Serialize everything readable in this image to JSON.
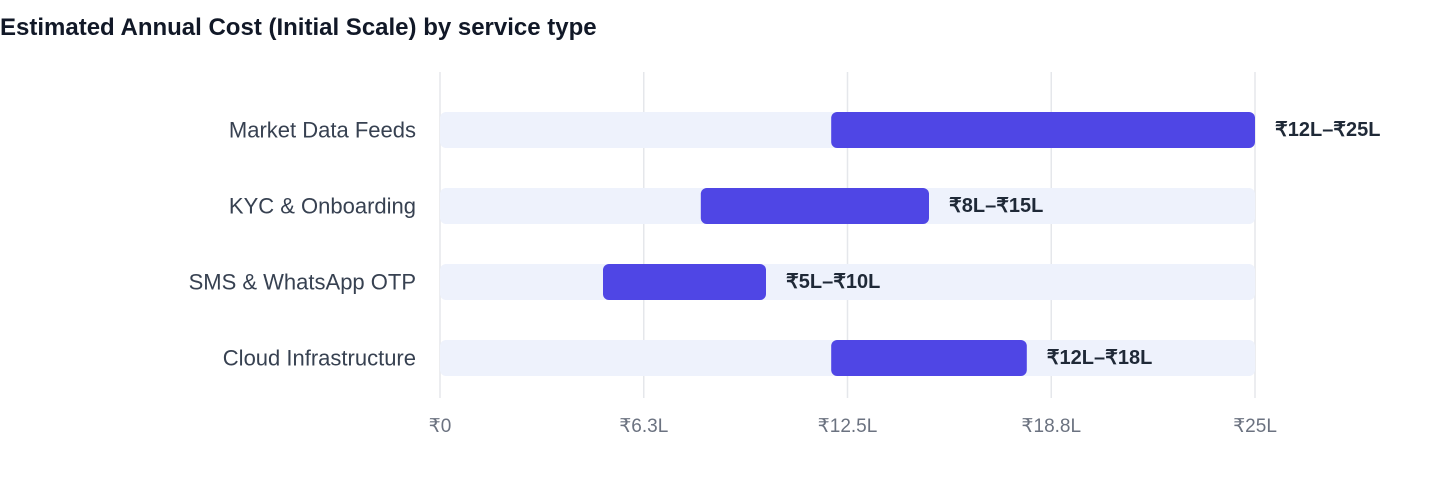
{
  "chart_data": {
    "type": "bar",
    "subtype": "floating-range-horizontal",
    "title": "Estimated Annual Cost (Initial Scale) by service type",
    "xlabel": "",
    "ylabel": "",
    "unit": "lakh INR",
    "xlim": [
      0,
      25
    ],
    "x_ticks": [
      0,
      6.25,
      12.5,
      18.75,
      25
    ],
    "x_tick_labels": [
      "₹0",
      "₹6.3L",
      "₹12.5L",
      "₹18.8L",
      "₹25L"
    ],
    "grid": true,
    "legend": "none",
    "categories": [
      "Market Data Feeds",
      "KYC & Onboarding",
      "SMS & WhatsApp OTP",
      "Cloud Infrastructure"
    ],
    "ranges": [
      {
        "low": 12,
        "high": 25,
        "label": "₹12L–₹25L"
      },
      {
        "low": 8,
        "high": 15,
        "label": "₹8L–₹15L"
      },
      {
        "low": 5,
        "high": 10,
        "label": "₹5L–₹10L"
      },
      {
        "low": 12,
        "high": 18,
        "label": "₹12L–₹18L"
      }
    ],
    "colors": {
      "bar": "#4f46e5",
      "track": "#eef2fc",
      "grid": "#e5e7eb"
    }
  }
}
